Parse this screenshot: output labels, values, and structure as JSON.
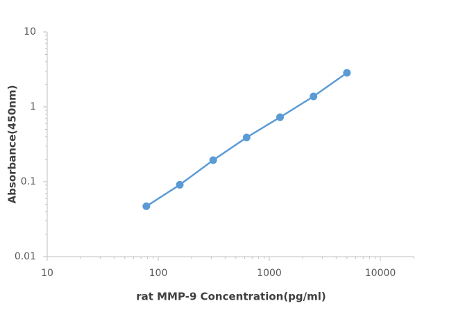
{
  "chart_data": {
    "type": "scatter-line",
    "x_label": "rat MMP-9 Concentration(pg/ml)",
    "y_label": "Absorbance(450nm)",
    "x": [
      78.125,
      156.25,
      312.5,
      625,
      1250,
      2500,
      5000
    ],
    "values": [
      0.047,
      0.091,
      0.194,
      0.39,
      0.726,
      1.377,
      2.84
    ],
    "color": "#5b9bd5",
    "x_log": true,
    "y_log": true,
    "grid": false,
    "xlim": [
      10,
      20000
    ],
    "xticks": [
      10,
      100,
      1000,
      10000
    ],
    "ylim": [
      0.01,
      10
    ],
    "yticks": [
      0.01,
      0.1,
      1,
      10
    ]
  }
}
